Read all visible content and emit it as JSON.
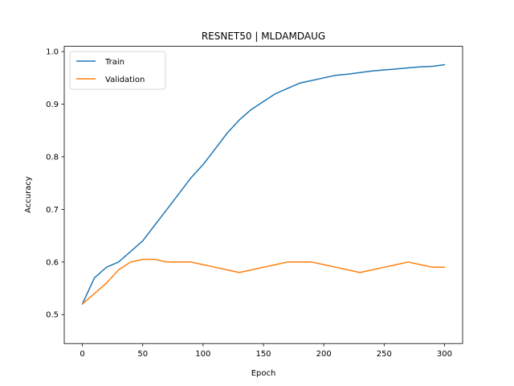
{
  "chart_data": {
    "type": "line",
    "title": "RESNET50 | MLDAMDAUG",
    "xlabel": "Epoch",
    "ylabel": "Accuracy",
    "xlim": [
      -15,
      315
    ],
    "ylim": [
      0.445,
      1.01
    ],
    "xticks": [
      0,
      50,
      100,
      150,
      200,
      250,
      300
    ],
    "yticks": [
      0.5,
      0.6,
      0.7,
      0.8,
      0.9,
      1.0
    ],
    "legend": "top-left",
    "grid": false,
    "x": [
      0,
      10,
      20,
      30,
      40,
      50,
      60,
      70,
      80,
      90,
      100,
      110,
      120,
      130,
      140,
      150,
      160,
      170,
      180,
      190,
      200,
      210,
      220,
      230,
      240,
      250,
      260,
      270,
      280,
      290,
      300
    ],
    "series": [
      {
        "name": "Train",
        "color": "#1f77b4",
        "values": [
          0.52,
          0.57,
          0.59,
          0.6,
          0.62,
          0.64,
          0.67,
          0.7,
          0.73,
          0.76,
          0.785,
          0.815,
          0.845,
          0.87,
          0.89,
          0.905,
          0.92,
          0.93,
          0.94,
          0.945,
          0.95,
          0.955,
          0.957,
          0.96,
          0.963,
          0.965,
          0.967,
          0.969,
          0.971,
          0.972,
          0.975
        ]
      },
      {
        "name": "Validation",
        "color": "#ff7f0e",
        "values": [
          0.52,
          0.54,
          0.56,
          0.585,
          0.6,
          0.605,
          0.605,
          0.6,
          0.6,
          0.6,
          0.595,
          0.59,
          0.585,
          0.58,
          0.585,
          0.59,
          0.595,
          0.6,
          0.6,
          0.6,
          0.595,
          0.59,
          0.585,
          0.58,
          0.585,
          0.59,
          0.595,
          0.6,
          0.595,
          0.59,
          0.59
        ]
      }
    ]
  }
}
